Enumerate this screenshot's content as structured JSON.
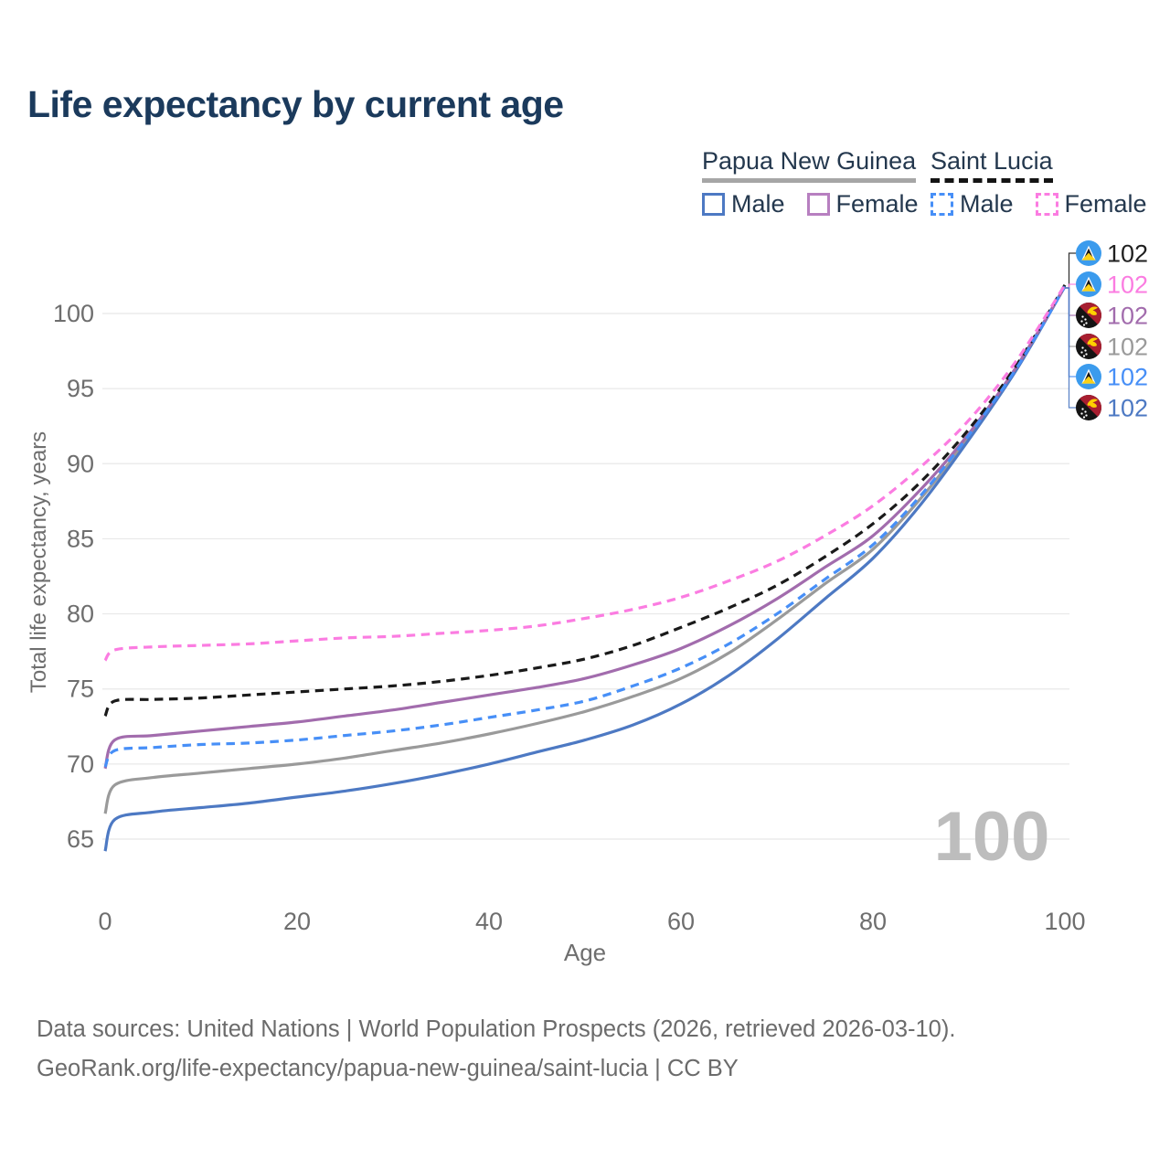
{
  "title": "Life expectancy by current age",
  "watermark": "100",
  "legend": {
    "groups": [
      {
        "country": "Papua New Guinea",
        "style": "solid",
        "underline_color": "#a6a6a6",
        "items": [
          {
            "label": "Male",
            "color": "#4d79c3"
          },
          {
            "label": "Female",
            "color": "#b77fc0"
          }
        ]
      },
      {
        "country": "Saint Lucia",
        "style": "dashed",
        "underline_color": "#141414",
        "items": [
          {
            "label": "Male",
            "color": "#478ff7"
          },
          {
            "label": "Female",
            "color": "#fb7ce1"
          }
        ]
      }
    ]
  },
  "chart_data": {
    "type": "line",
    "title": "Life expectancy by current age",
    "xlabel": "Age",
    "ylabel": "Total life expectancy, years",
    "x_ticks": [
      0,
      20,
      40,
      60,
      80,
      100
    ],
    "y_ticks": [
      65,
      70,
      75,
      80,
      85,
      90,
      95,
      100
    ],
    "xlim": [
      0,
      100
    ],
    "ylim": [
      63.5,
      103
    ],
    "grid": "horizontal",
    "legend_position": "top-right",
    "ages": [
      0,
      1,
      5,
      10,
      15,
      20,
      25,
      30,
      35,
      40,
      45,
      50,
      55,
      60,
      65,
      70,
      75,
      80,
      85,
      90,
      95,
      100
    ],
    "series": [
      {
        "id": "png_all",
        "name": "Papua New Guinea",
        "country": "Papua New Guinea",
        "sex": "all",
        "style": "solid",
        "color": "#9a9a9a",
        "values": [
          66.7,
          68.6,
          69.1,
          69.4,
          69.7,
          70.0,
          70.4,
          70.9,
          71.4,
          72.0,
          72.7,
          73.5,
          74.5,
          75.7,
          77.4,
          79.6,
          82.0,
          84.3,
          87.7,
          91.8,
          96.4,
          101.8
        ]
      },
      {
        "id": "png_male",
        "name": "Papua New Guinea Male",
        "country": "Papua New Guinea",
        "sex": "male",
        "style": "solid",
        "color": "#4d79c3",
        "values": [
          64.2,
          66.3,
          66.8,
          67.1,
          67.4,
          67.8,
          68.2,
          68.7,
          69.3,
          70.0,
          70.8,
          71.6,
          72.6,
          74.0,
          75.9,
          78.3,
          81.0,
          83.7,
          87.3,
          91.6,
          96.3,
          101.8
        ]
      },
      {
        "id": "png_female",
        "name": "Papua New Guinea Female",
        "country": "Papua New Guinea",
        "sex": "female",
        "style": "solid",
        "color": "#a26cad",
        "values": [
          69.7,
          71.6,
          71.9,
          72.2,
          72.5,
          72.8,
          73.2,
          73.6,
          74.1,
          74.6,
          75.1,
          75.7,
          76.6,
          77.7,
          79.2,
          81.0,
          83.1,
          85.2,
          88.3,
          92.0,
          96.5,
          101.8
        ]
      },
      {
        "id": "sl_all",
        "name": "Saint Lucia",
        "country": "Saint Lucia",
        "sex": "all",
        "style": "dashed",
        "color": "#1a1a1a",
        "values": [
          73.2,
          74.2,
          74.3,
          74.4,
          74.6,
          74.8,
          75.0,
          75.2,
          75.5,
          75.9,
          76.4,
          77.0,
          77.9,
          79.1,
          80.4,
          81.9,
          83.8,
          86.0,
          88.8,
          92.3,
          96.6,
          101.9
        ]
      },
      {
        "id": "sl_male",
        "name": "Saint Lucia Male",
        "country": "Saint Lucia",
        "sex": "male",
        "style": "dashed",
        "color": "#478ff7",
        "values": [
          69.8,
          70.9,
          71.1,
          71.3,
          71.4,
          71.6,
          71.9,
          72.2,
          72.6,
          73.1,
          73.6,
          74.2,
          75.2,
          76.4,
          78.0,
          80.0,
          82.3,
          84.6,
          87.9,
          91.9,
          96.4,
          101.8
        ]
      },
      {
        "id": "sl_female",
        "name": "Saint Lucia Female",
        "country": "Saint Lucia",
        "sex": "female",
        "style": "dashed",
        "color": "#fb7ce1",
        "values": [
          76.9,
          77.6,
          77.8,
          77.9,
          78.0,
          78.2,
          78.4,
          78.5,
          78.7,
          78.9,
          79.2,
          79.7,
          80.3,
          81.1,
          82.2,
          83.5,
          85.2,
          87.2,
          89.8,
          92.9,
          96.9,
          101.9
        ]
      }
    ],
    "right_labels": [
      {
        "series": "sl_all",
        "flag": "saint-lucia",
        "text": "102",
        "color": "#1f1f1f"
      },
      {
        "series": "sl_female",
        "flag": "saint-lucia",
        "text": "102",
        "color": "#fb7ce1"
      },
      {
        "series": "png_female",
        "flag": "papua-new-guinea",
        "text": "102",
        "color": "#a26cad"
      },
      {
        "series": "png_all",
        "flag": "papua-new-guinea",
        "text": "102",
        "color": "#9a9a9a"
      },
      {
        "series": "sl_male",
        "flag": "saint-lucia",
        "text": "102",
        "color": "#478ff7"
      },
      {
        "series": "png_male",
        "flag": "papua-new-guinea",
        "text": "102",
        "color": "#4d79c3"
      }
    ]
  },
  "footer": {
    "line1": "Data sources: United Nations | World Population Prospects (2026, retrieved 2026-03-10).",
    "line2": "GeoRank.org/life-expectancy/papua-new-guinea/saint-lucia | CC BY"
  }
}
